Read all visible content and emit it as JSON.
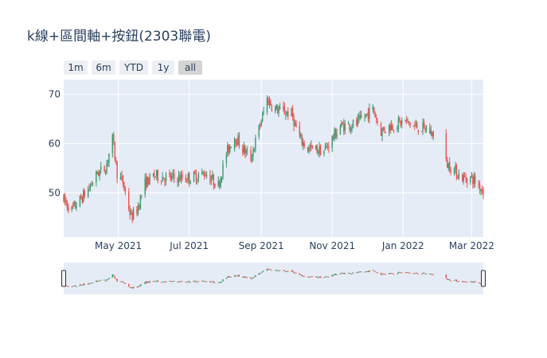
{
  "chart_data": {
    "type": "candlestick",
    "title": "k線+區間軸+按鈕(2303聯電)",
    "xlabel": "",
    "ylabel": "",
    "x_range": [
      "2021-03-15",
      "2022-03-11"
    ],
    "ylim": [
      41,
      73
    ],
    "y_ticks": [
      50,
      60,
      70
    ],
    "x_ticks": [
      {
        "date": "2021-05-01",
        "label": "May 2021"
      },
      {
        "date": "2021-07-01",
        "label": "Jul 2021"
      },
      {
        "date": "2021-09-01",
        "label": "Sep 2021"
      },
      {
        "date": "2021-11-01",
        "label": "Nov 2021"
      },
      {
        "date": "2022-01-01",
        "label": "Jan 2022"
      },
      {
        "date": "2022-03-01",
        "label": "Mar 2022"
      }
    ],
    "increasing_color": "#3d9970",
    "decreasing_color": "#ef5350",
    "rangeslider": true,
    "buttons": [
      {
        "label": "1m",
        "active": false
      },
      {
        "label": "6m",
        "active": false
      },
      {
        "label": "YTD",
        "active": false
      },
      {
        "label": "1y",
        "active": false
      },
      {
        "label": "all",
        "active": true
      }
    ],
    "anchors": [
      [
        "2021-03-15",
        48.5
      ],
      [
        "2021-03-22",
        46.5
      ],
      [
        "2021-03-29",
        48.5
      ],
      [
        "2021-04-06",
        51.0
      ],
      [
        "2021-04-13",
        54.0
      ],
      [
        "2021-04-20",
        55.0
      ],
      [
        "2021-04-26",
        61.0
      ],
      [
        "2021-04-30",
        54.0
      ],
      [
        "2021-05-05",
        52.0
      ],
      [
        "2021-05-12",
        45.0
      ],
      [
        "2021-05-17",
        46.5
      ],
      [
        "2021-05-24",
        52.0
      ],
      [
        "2021-06-01",
        53.5
      ],
      [
        "2021-06-15",
        53.0
      ],
      [
        "2021-07-01",
        53.0
      ],
      [
        "2021-07-15",
        54.0
      ],
      [
        "2021-07-26",
        51.5
      ],
      [
        "2021-08-02",
        58.0
      ],
      [
        "2021-08-09",
        61.5
      ],
      [
        "2021-08-16",
        59.0
      ],
      [
        "2021-08-23",
        57.0
      ],
      [
        "2021-08-30",
        63.0
      ],
      [
        "2021-09-06",
        69.0
      ],
      [
        "2021-09-13",
        67.0
      ],
      [
        "2021-09-27",
        66.0
      ],
      [
        "2021-10-04",
        61.0
      ],
      [
        "2021-10-11",
        59.0
      ],
      [
        "2021-10-25",
        58.5
      ],
      [
        "2021-11-08",
        63.5
      ],
      [
        "2021-11-22",
        64.0
      ],
      [
        "2021-12-06",
        67.0
      ],
      [
        "2021-12-13",
        62.5
      ],
      [
        "2021-12-20",
        63.5
      ],
      [
        "2022-01-03",
        64.5
      ],
      [
        "2022-01-10",
        63.5
      ],
      [
        "2022-01-20",
        63.0
      ],
      [
        "2022-01-27",
        62.0
      ],
      [
        "2022-02-07",
        56.0
      ],
      [
        "2022-02-10",
        55.5
      ],
      [
        "2022-02-21",
        53.0
      ],
      [
        "2022-03-01",
        53.0
      ],
      [
        "2022-03-07",
        51.5
      ],
      [
        "2022-03-11",
        50.5
      ]
    ]
  }
}
